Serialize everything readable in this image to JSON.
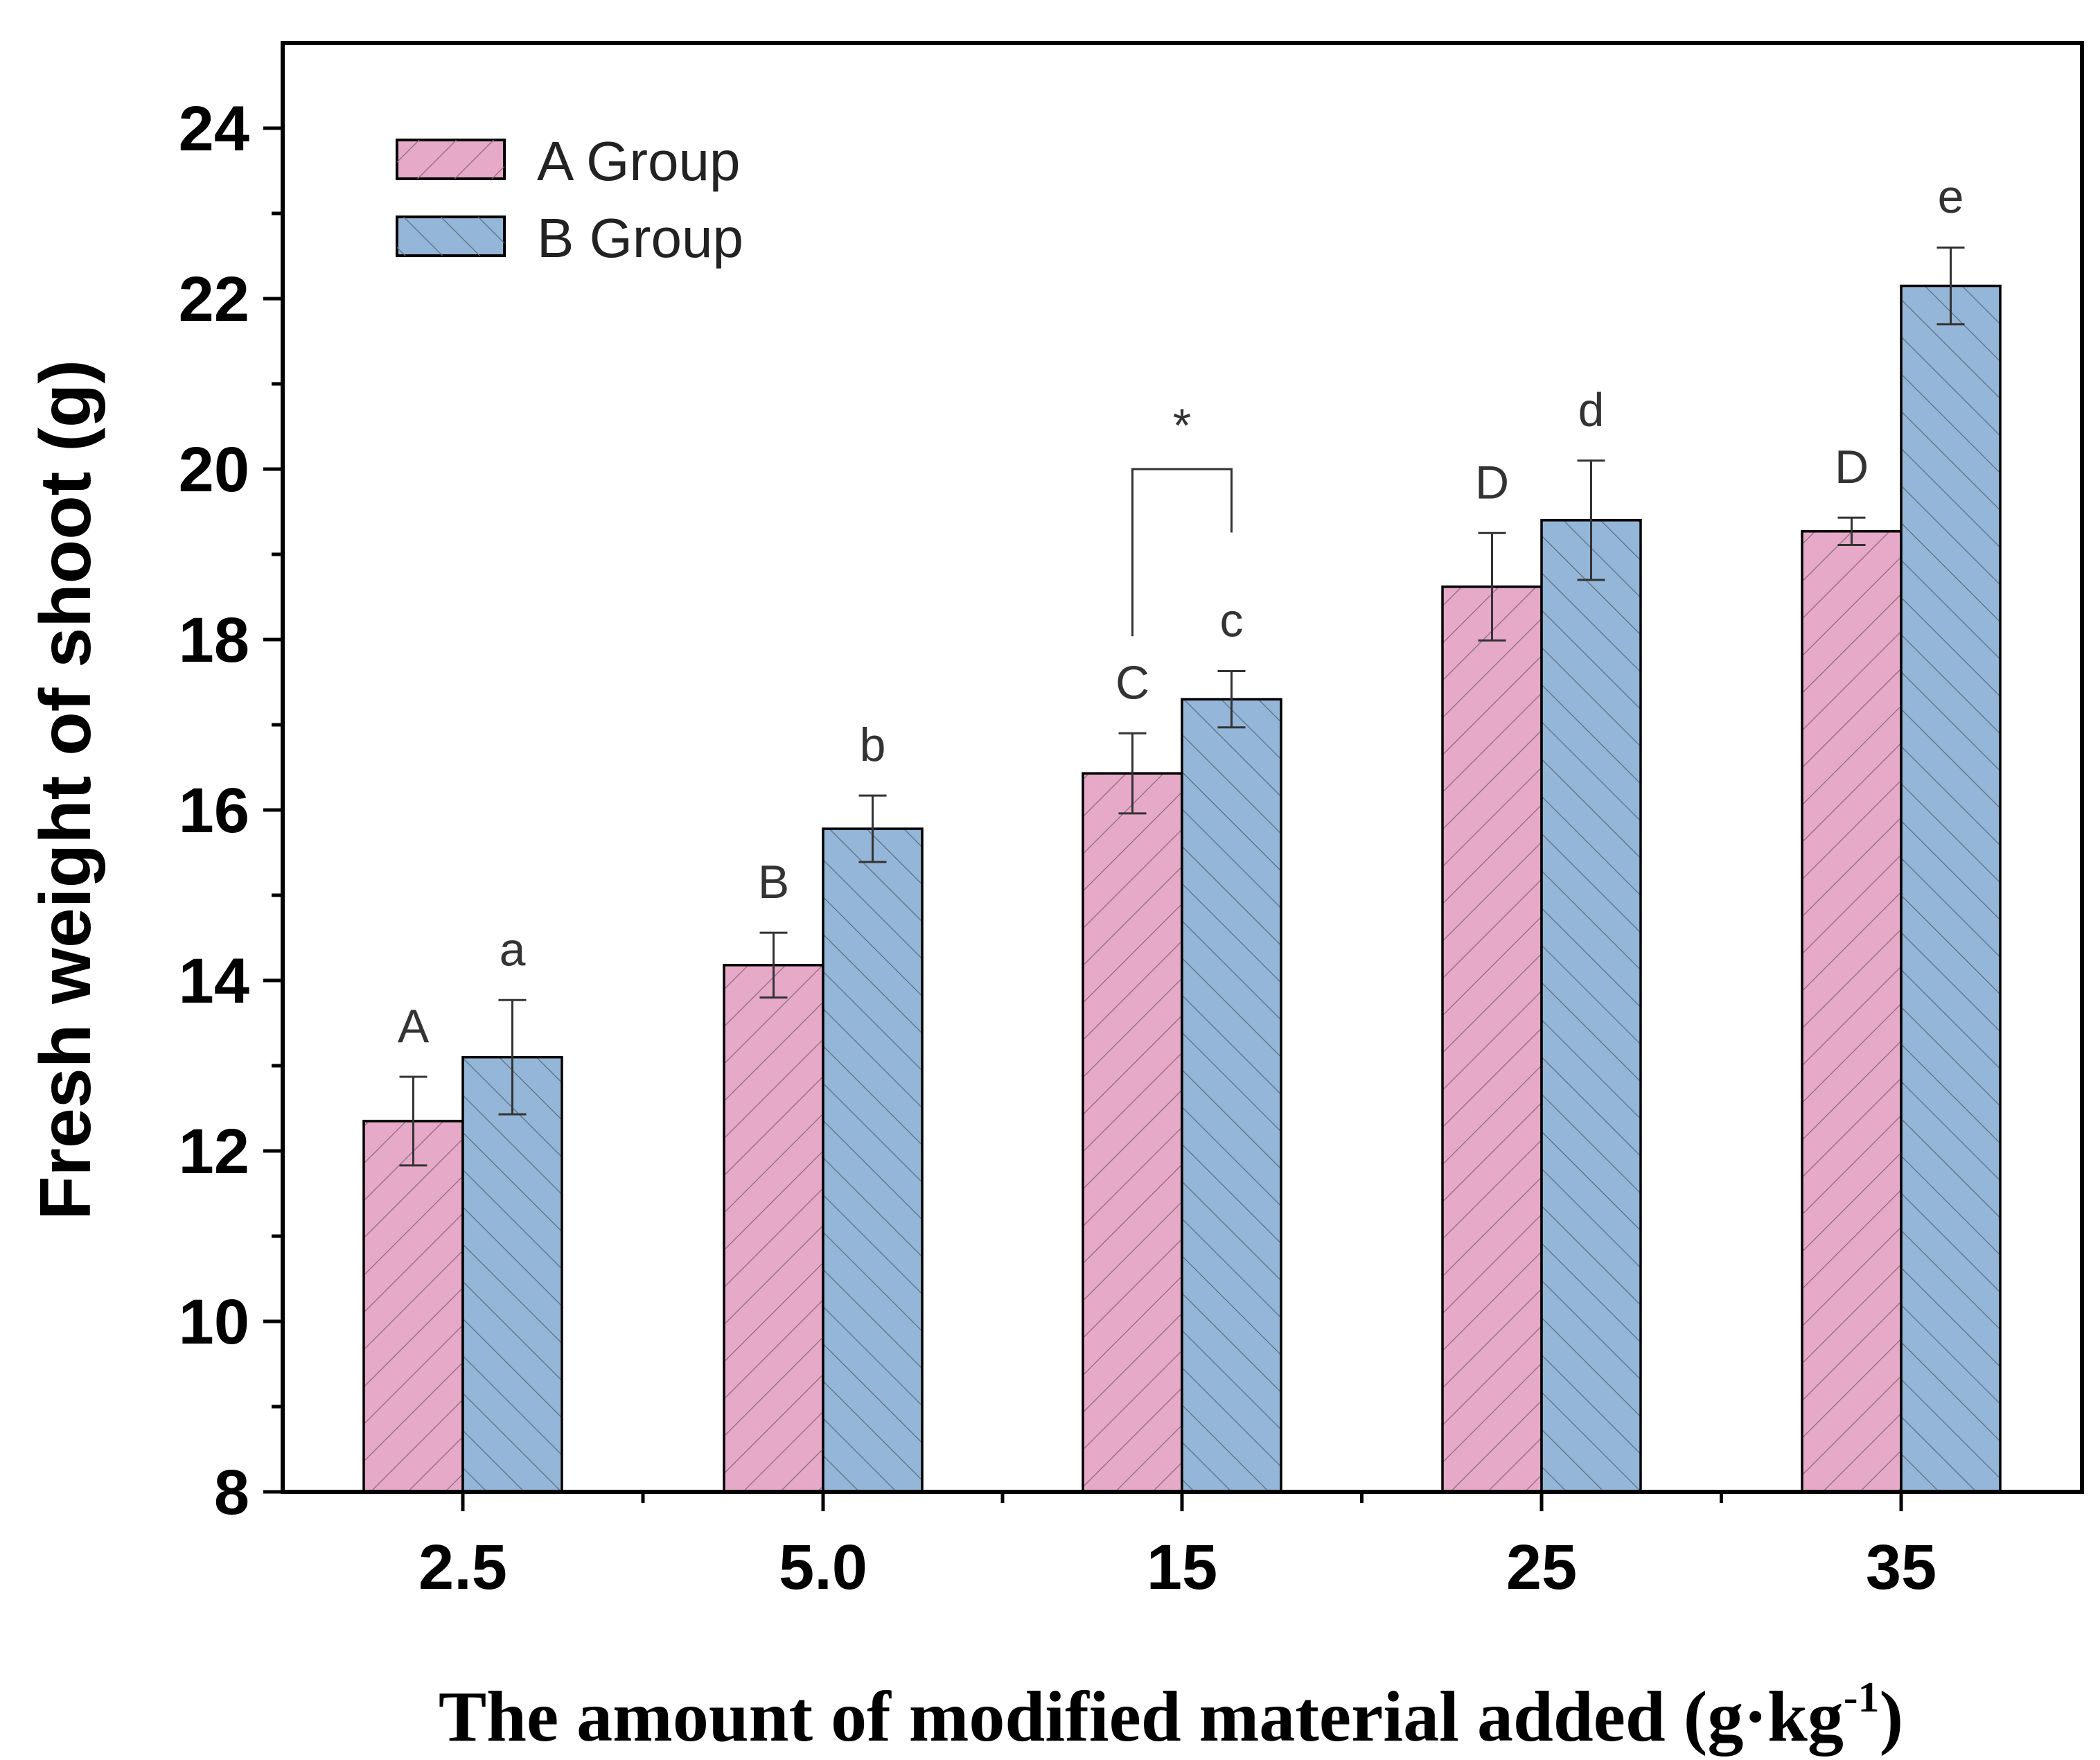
{
  "chart_data": {
    "type": "bar",
    "title": "",
    "xlabel": "The amount of modified material added (g·kg",
    "xlabel_superscript": "-1",
    "xlabel_suffix": ")",
    "ylabel": "Fresh weight of shoot (g)",
    "ylim": [
      8,
      25
    ],
    "yticks": [
      "8",
      "10",
      "12",
      "14",
      "16",
      "18",
      "20",
      "22",
      "24"
    ],
    "categories": [
      "2.5",
      "5.0",
      "15",
      "25",
      "35"
    ],
    "series": [
      {
        "name": "A Group",
        "color": "#e7a9c8",
        "hatch": "forward",
        "values": [
          12.35,
          14.18,
          16.43,
          18.62,
          19.27
        ],
        "errors": [
          0.52,
          0.38,
          0.47,
          0.63,
          0.16
        ],
        "letters": [
          "A",
          "B",
          "C",
          "D",
          "D"
        ]
      },
      {
        "name": "B Group",
        "color": "#94b6d8",
        "hatch": "backward",
        "values": [
          13.1,
          15.78,
          17.3,
          19.4,
          22.15
        ],
        "errors": [
          0.67,
          0.39,
          0.33,
          0.7,
          0.45
        ],
        "letters": [
          "a",
          "b",
          "c",
          "d",
          "e"
        ]
      }
    ],
    "annotations": [
      {
        "text": "*",
        "category": "15",
        "type": "bracket"
      }
    ],
    "legend": {
      "position": "top-left"
    },
    "grid": false
  }
}
